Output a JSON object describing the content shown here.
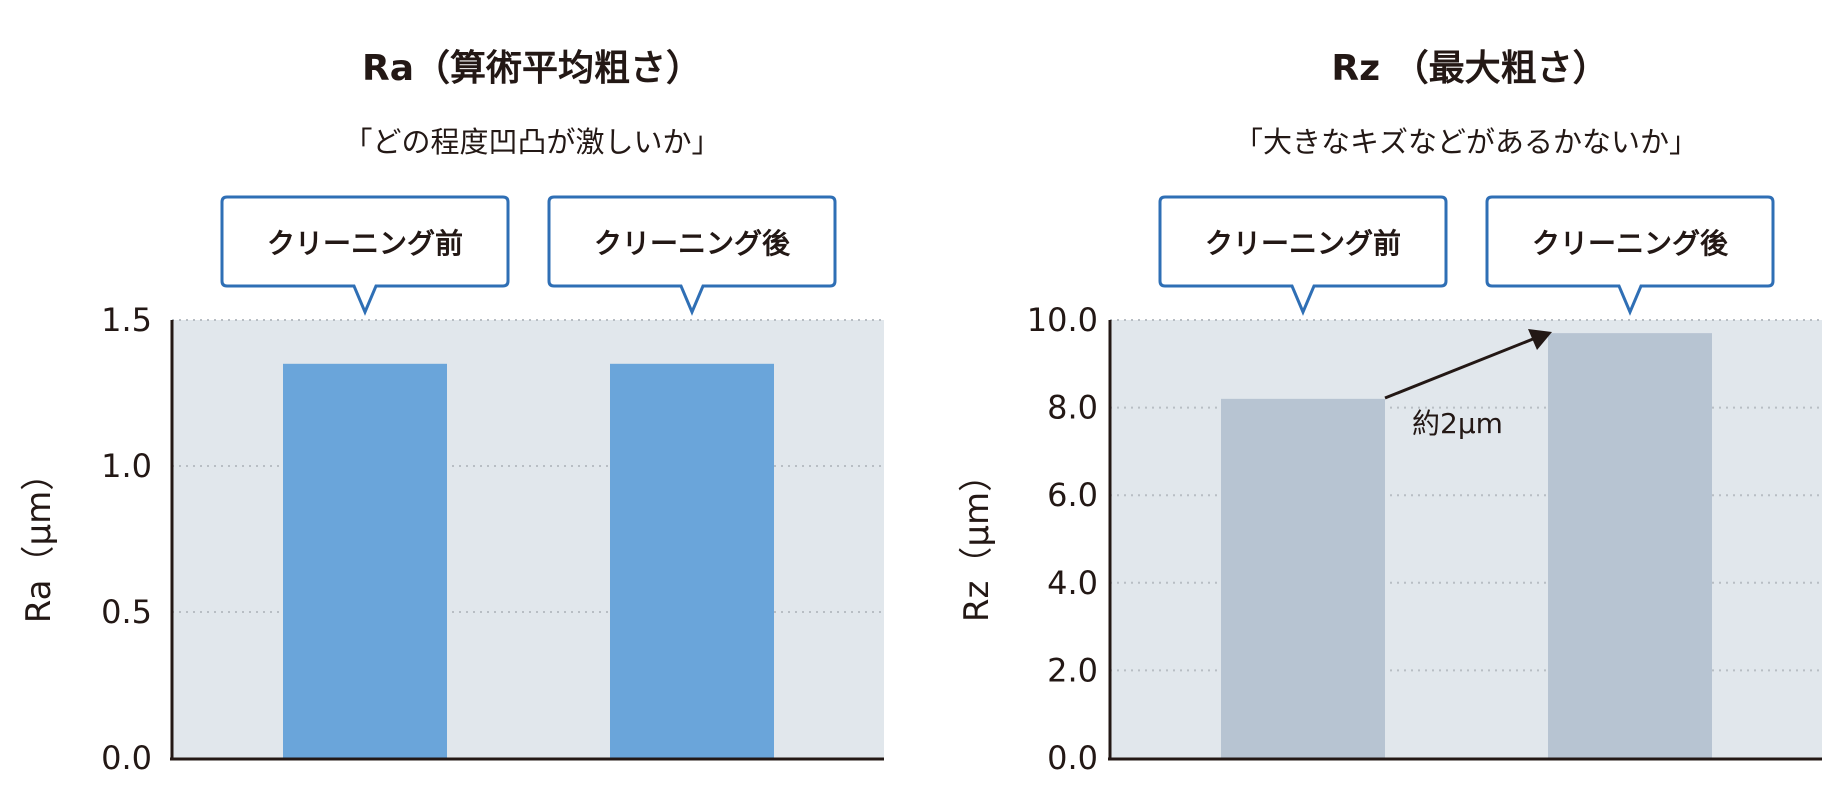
{
  "chart_data": [
    {
      "type": "bar",
      "title": "Ra（算術平均粗さ）",
      "subtitle": "「どの程度凹凸が激しいか」",
      "ylabel": "Ra（μm）",
      "xlabel": "",
      "categories": [
        "クリーニング前",
        "クリーニング後"
      ],
      "values": [
        1.35,
        1.35
      ],
      "ylim": [
        0,
        1.5
      ],
      "yticks": [
        "0.0",
        "0.5",
        "1.0",
        "1.5"
      ],
      "grid": true,
      "bar_color": "#6aa5da",
      "plot_bg": "#e1e7ec",
      "callout_border": "#2f6fb5"
    },
    {
      "type": "bar",
      "title": "Rz （最大粗さ）",
      "subtitle": "「大きなキズなどがあるかないか」",
      "ylabel": "Rz（μm）",
      "xlabel": "",
      "categories": [
        "クリーニング前",
        "クリーニング後"
      ],
      "values": [
        8.2,
        9.7
      ],
      "ylim": [
        0,
        10
      ],
      "yticks": [
        "0.0",
        "2.0",
        "4.0",
        "6.0",
        "8.0",
        "10.0"
      ],
      "grid": true,
      "bar_color": "#b7c4d2",
      "plot_bg": "#e1e7ec",
      "callout_border": "#2f6fb5",
      "annotation": "約2μm"
    }
  ]
}
